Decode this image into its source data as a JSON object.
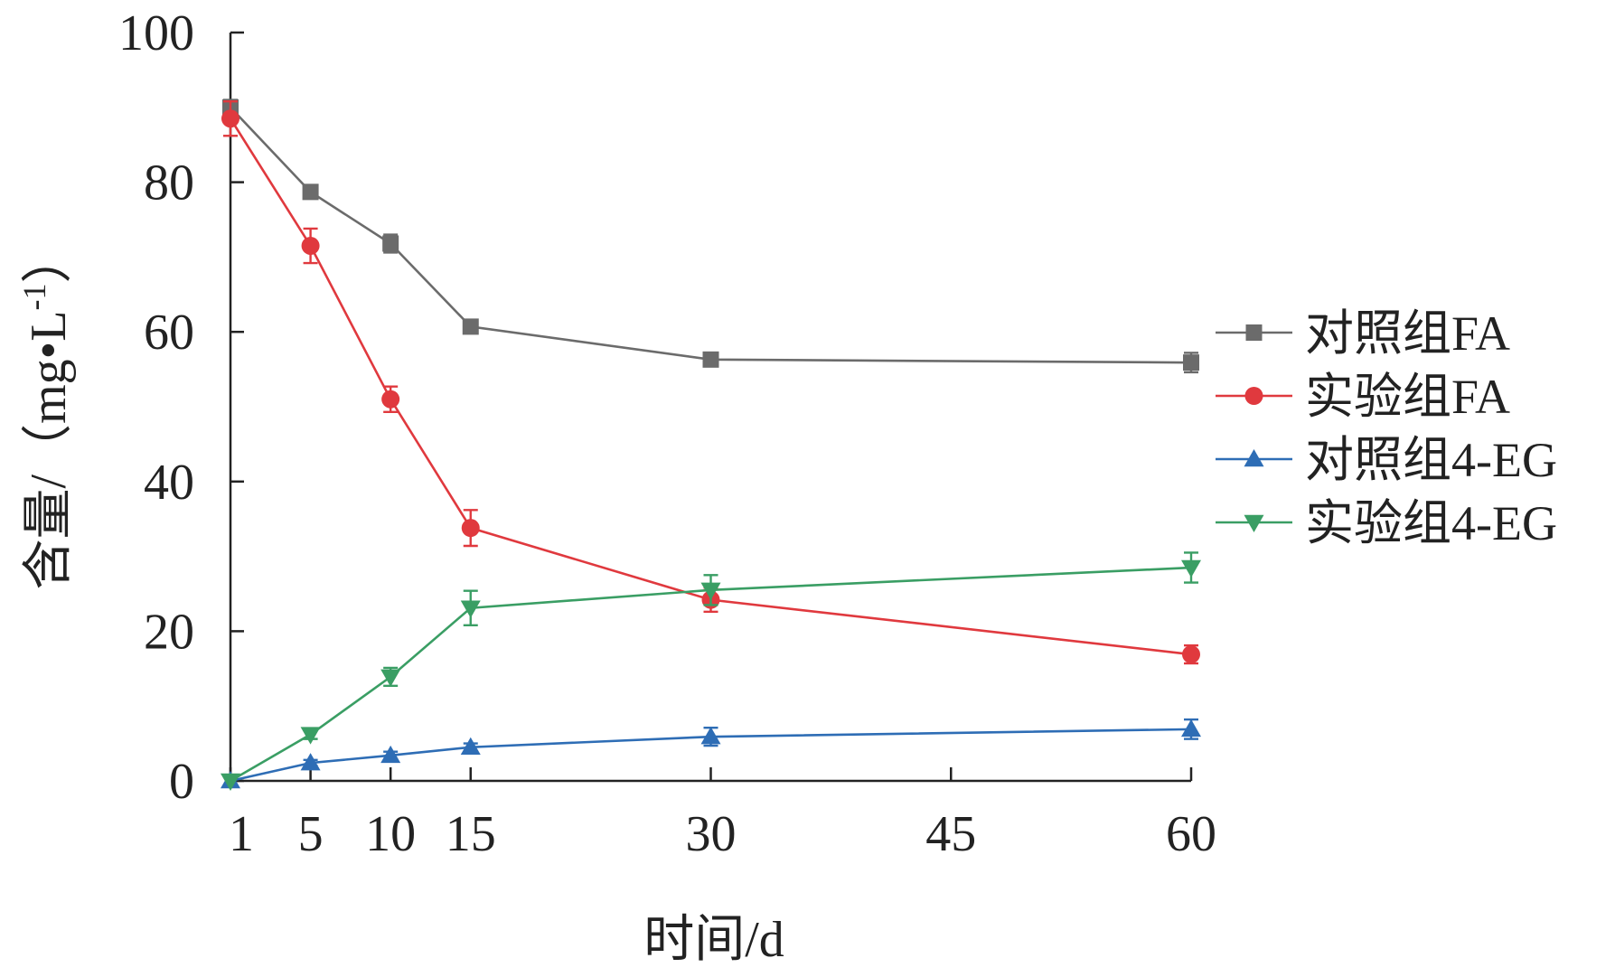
{
  "chart_data": {
    "type": "line",
    "title": "",
    "xlabel": "时间/d",
    "ylabel": "含量/（mg•L-1）",
    "ylabel_parts": {
      "main": "含量/（mg•L",
      "sup": "-1",
      "close": "）"
    },
    "xlim": [
      0,
      60
    ],
    "ylim": [
      0,
      100
    ],
    "x_ticks": [
      0,
      5,
      10,
      15,
      30,
      45,
      60
    ],
    "x_tick_labels": [
      "1",
      "5",
      "10",
      "15",
      "30",
      "45",
      "60"
    ],
    "y_ticks": [
      0,
      20,
      40,
      60,
      80,
      100
    ],
    "y_tick_labels": [
      "0",
      "20",
      "40",
      "60",
      "80",
      "100"
    ],
    "x": [
      0,
      5,
      10,
      15,
      30,
      60
    ],
    "legend_position": "right",
    "series": [
      {
        "name": "对照组FA",
        "color": "#6b6b6b",
        "marker": "square",
        "values": [
          90.0,
          78.7,
          71.8,
          60.7,
          56.3,
          55.9
        ],
        "errors": [
          1.0,
          0.9,
          1.2,
          0.6,
          0.6,
          1.3
        ]
      },
      {
        "name": "实验组FA",
        "color": "#e0393e",
        "marker": "circle",
        "values": [
          88.5,
          71.5,
          51.0,
          33.8,
          24.2,
          16.9
        ],
        "errors": [
          2.3,
          2.3,
          1.7,
          2.4,
          1.6,
          1.2
        ]
      },
      {
        "name": "对照组4-EG",
        "color": "#2e6db5",
        "marker": "triangle-up",
        "values": [
          0.0,
          2.4,
          3.4,
          4.5,
          5.9,
          6.9
        ],
        "errors": [
          0.2,
          0.4,
          0.5,
          0.5,
          1.2,
          1.3
        ]
      },
      {
        "name": "实验组4-EG",
        "color": "#3a9e64",
        "marker": "triangle-down",
        "values": [
          0.0,
          6.2,
          13.9,
          23.1,
          25.5,
          28.5
        ],
        "errors": [
          0.2,
          0.6,
          1.2,
          2.3,
          2.0,
          2.0
        ]
      }
    ]
  }
}
